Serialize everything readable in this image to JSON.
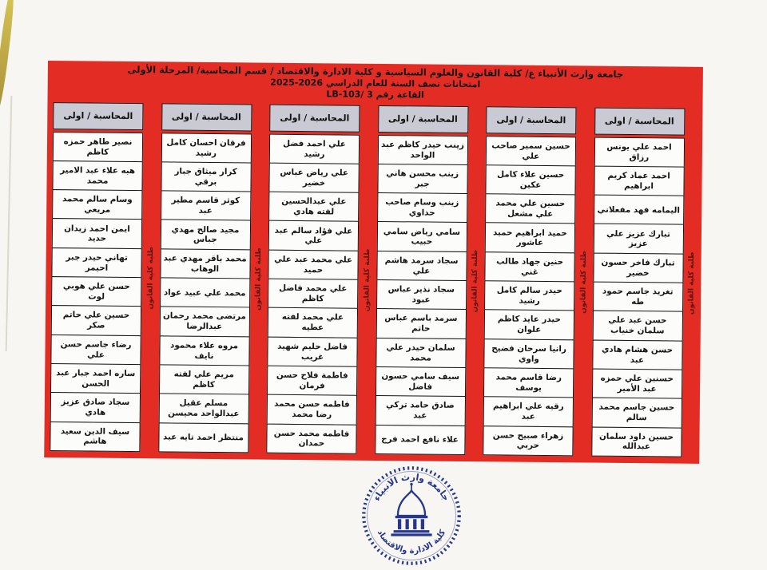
{
  "header": {
    "line1": "جامعة وارث الأنبياء ع/ كلية القانون والعلوم السياسية و كلية الادارة والاقتصاد / قسم المحاسبة/ المرحلة الأولى",
    "line2": "امتحانات نصف السنة للعام الدراسي 2026-2025",
    "line3": "القاعة رقم 3 /LB-103"
  },
  "strip_label": "طلبة كلية القانون",
  "columns": [
    {
      "header": "المحاسبة / اولى",
      "names": [
        "احمد علي يونس رزاق",
        "احمد عماد كريم ابراهيم",
        "اليمامه فهد مفعلاني",
        "تبارك عزيز علي عزيز",
        "تبارك فاخر حسون خضير",
        "تغريد جاسم حمود طه",
        "حسن عبد علي سلمان خنياب",
        "حسن هشام هادي عبد",
        "حسنين علي حمزه عبد الأمير",
        "حسين جاسم محمد سالم",
        "حسين داود سلمان عبدالله"
      ]
    },
    {
      "header": "المحاسبة / اولى",
      "names": [
        "حسين سمير صاحب علي",
        "حسين علاء كامل عكين",
        "حسين علي محمد علي مشعل",
        "حميد ابراهيم حميد عاشور",
        "حنين جهاد طالب غني",
        "حيدر سالم كامل رشيد",
        "حيدر عايد كاظم علوان",
        "رانيا سرحان فضيح واوي",
        "رضا قاسم محمد يوسف",
        "رقيه علي ابراهيم عبد",
        "زهراء صبيح حسن حربي"
      ]
    },
    {
      "header": "المحاسبة / اولى",
      "names": [
        "زينب حيدر كاظم عبد الواحد",
        "زينب محسن هاني جبر",
        "زينب وسام صاحب حداوي",
        "سامي رياض سامي حبيب",
        "سجاد سرمد هاشم علي",
        "سجاد نذير عباس عبود",
        "سرمد باسم عباس حاتم",
        "سلمان حيدر علي محمد",
        "سيف سامي حسون فاضل",
        "صادق حامد تركي عبد",
        "علاء نافع احمد فرج"
      ]
    },
    {
      "header": "المحاسبة / اولى",
      "names": [
        "علي احمد فضل رشيد",
        "علي رياض عباس خضير",
        "علي عبدالحسين لفته هادي",
        "علي فؤاد سالم عبد علي",
        "علي محمد عبد علي حميد",
        "علي محمد فاضل كاظم",
        "علي محمد لفته عطيه",
        "فاضل حليم شهيد غريب",
        "فاطمة فلاح حسن فرمان",
        "فاطمه حسن محمد رضا محمد",
        "فاطمه محمد حسن حمدان"
      ]
    },
    {
      "header": "المحاسبة / اولى",
      "names": [
        "فرقان احسان كامل رشيد",
        "كرار ميثاق جبار برقي",
        "كوثر قاسم مطير عبد",
        "مجيد صالح مهدي جباس",
        "محمد باقر مهدي عبد الوهاب",
        "محمد علي عبيد عواد",
        "مرتضى محمد رحمان عبدالرضا",
        "مروه علاء محمود نايف",
        "مريم علي لفته كاظم",
        "مسلم عقيل عبدالواحد محيسن",
        "منتظر احمد تايه عبد"
      ]
    },
    {
      "header": "المحاسبة / اولى",
      "names": [
        "نصير طاهر حمزه كاظم",
        "هبه علاء عبد الامير محمد",
        "وسام سالم محمد مريعي",
        "ايمن احمد زيدان حديد",
        "تهاني حيدر جبر احيمر",
        "حسن علي هوبي لوت",
        "حسين علي حاتم صكر",
        "رضاء جاسم حسن علي",
        "ساره احمد جبار عبد الحسن",
        "سجاد صادق عزيز هادي",
        "سيف الدين سعيد هاشم"
      ]
    }
  ],
  "logo": {
    "top_text": "جامعة وارث الانبياء",
    "bottom_text": "كلية الادارة والاقتصاد"
  },
  "colors": {
    "board_red": "#e22c24",
    "header_cell_bg": "#c9cad3",
    "strip_text": "#5e130d",
    "logo_blue": "#27378c"
  }
}
